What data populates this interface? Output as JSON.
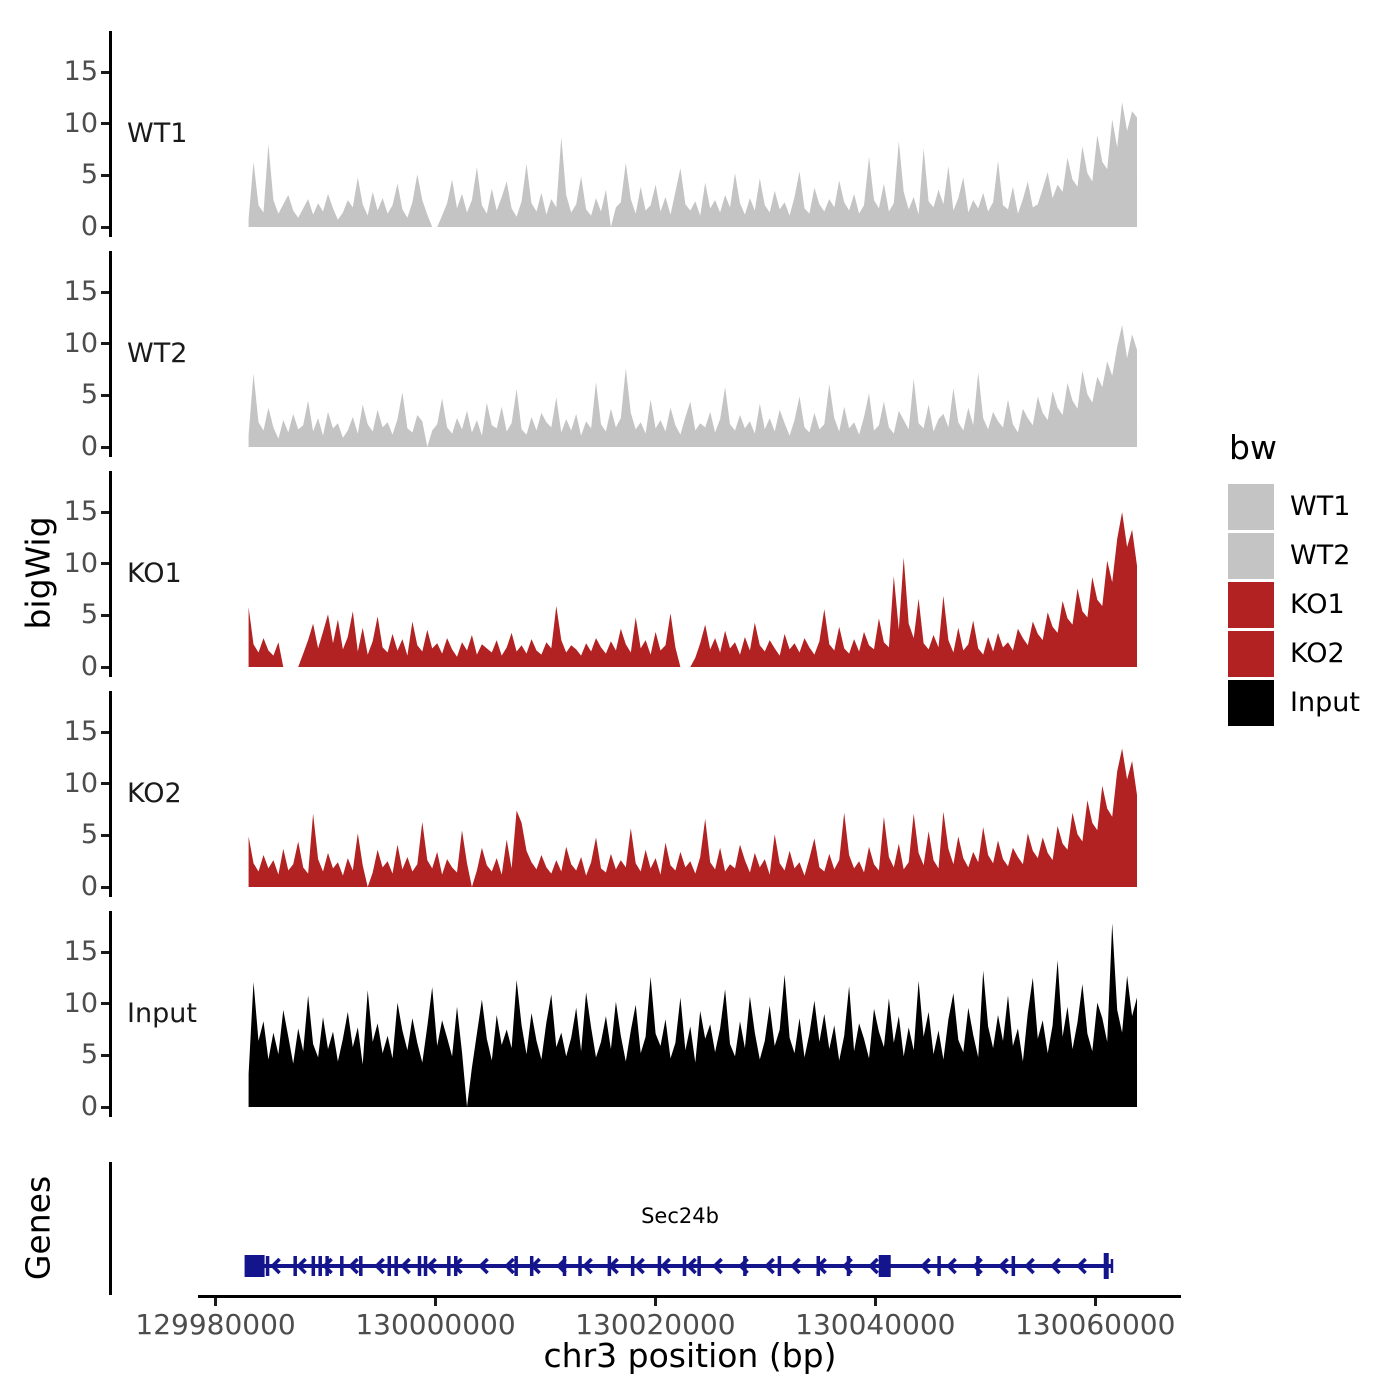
{
  "figure": {
    "y_axis_title": "bigWig",
    "genes_axis_title": "Genes",
    "x_axis_title": "chr3 position (bp)",
    "gene_label": "Sec24b"
  },
  "legend": {
    "title": "bw",
    "items": [
      {
        "label": "WT1",
        "color": "#c4c4c4"
      },
      {
        "label": "WT2",
        "color": "#c4c4c4"
      },
      {
        "label": "KO1",
        "color": "#b22222"
      },
      {
        "label": "KO2",
        "color": "#b22222"
      },
      {
        "label": "Input",
        "color": "#000000"
      }
    ]
  },
  "chart_data": {
    "type": "area",
    "title": "",
    "xlabel": "chr3 position (bp)",
    "ylabel": "bigWig",
    "grid": false,
    "legend_position": "right",
    "x_axis": {
      "axis_min_bp": 129978400,
      "axis_max_bp": 130067800,
      "tick_values": [
        129980000,
        130000000,
        130020000,
        130040000,
        130060000
      ],
      "tick_labels": [
        "129980000",
        "130000000",
        "130020000",
        "130040000",
        "130060000"
      ]
    },
    "y_axis": {
      "ticks": [
        0,
        5,
        10,
        15
      ],
      "ylim": [
        0,
        18.5
      ]
    },
    "data_start_bp": 129983000,
    "data_end_bp": 130063800,
    "tracks": [
      {
        "name": "WT1",
        "color": "#c4c4c4",
        "values": [
          0.8,
          6.3,
          2.1,
          1.4,
          8,
          2.6,
          1.3,
          2.2,
          3.1,
          1.6,
          0.9,
          1.8,
          2.7,
          1.2,
          2.3,
          1.5,
          3.2,
          1.8,
          0.7,
          1.4,
          2.6,
          1.9,
          4.8,
          2.2,
          1.1,
          3.4,
          1.6,
          2.8,
          1.3,
          2.1,
          4.2,
          1.7,
          0.9,
          2.4,
          5.1,
          2.6,
          1.2,
          0,
          0,
          1.1,
          2.3,
          4.6,
          1.8,
          3.2,
          1.4,
          2.6,
          5.8,
          2.1,
          1.3,
          3.7,
          1.6,
          2.9,
          4.4,
          1.8,
          1,
          2.5,
          6.1,
          2.3,
          1.5,
          3.3,
          1.2,
          2.7,
          1.9,
          8.7,
          3.1,
          1.4,
          2.2,
          4.9,
          1.7,
          1.1,
          2.8,
          1.5,
          3.6,
          0,
          1.9,
          2.4,
          6.2,
          2.7,
          1.3,
          3.9,
          1.6,
          2.1,
          4.1,
          1.5,
          2.9,
          1.2,
          3.4,
          5.7,
          2.2,
          1.6,
          2.5,
          1.1,
          4.3,
          1.8,
          2.6,
          1.4,
          3.1,
          1.9,
          5.2,
          2.3,
          1.2,
          2.8,
          1.6,
          4.7,
          2.1,
          1.4,
          3.5,
          1.7,
          2.4,
          1.1,
          2.9,
          5.4,
          1.8,
          1.3,
          3.8,
          2.2,
          1.5,
          2.7,
          1.9,
          4.5,
          2.4,
          1.6,
          3.2,
          1.3,
          2.1,
          6.8,
          2.6,
          1.8,
          4.2,
          1.5,
          2.3,
          8.3,
          3.4,
          1.7,
          2.9,
          1.2,
          7.6,
          2.5,
          1.9,
          3.6,
          2.2,
          5.9,
          1.6,
          2.8,
          4.8,
          1.4,
          2.6,
          1.8,
          3.3,
          1.5,
          2.4,
          6.4,
          2.1,
          1.7,
          3.9,
          1.3,
          2.7,
          4.4,
          1.9,
          2.2,
          3.7,
          5.3,
          2.8,
          4.1,
          3.4,
          6.7,
          4.6,
          3.9,
          7.8,
          5.2,
          4.4,
          8.9,
          6.3,
          5.6,
          10.4,
          7.7,
          12.1,
          9.3,
          11.2,
          10.6
        ]
      },
      {
        "name": "WT2",
        "color": "#c4c4c4",
        "values": [
          1.2,
          7.1,
          2.4,
          1.6,
          3.8,
          1.9,
          0.8,
          2.6,
          1.4,
          3.2,
          1.7,
          2.1,
          4.5,
          1.5,
          2.8,
          1.1,
          3.4,
          1.8,
          2.3,
          0.9,
          1.6,
          2.9,
          1.3,
          4.1,
          2.2,
          1.5,
          3.6,
          1.9,
          2.4,
          1.2,
          2.7,
          5.3,
          1.8,
          1.4,
          3.1,
          2.5,
          0,
          1.6,
          2.2,
          4.7,
          1.9,
          1.3,
          2.8,
          1.7,
          3.5,
          1.4,
          2.6,
          1.1,
          4.3,
          2.1,
          1.8,
          3.9,
          1.5,
          2.3,
          5.6,
          1.7,
          1.2,
          2.9,
          1.6,
          3.3,
          2.4,
          1.9,
          4.8,
          1.4,
          2.7,
          1.6,
          3.2,
          1.1,
          2.5,
          1.8,
          6.3,
          2.2,
          1.5,
          3.7,
          1.9,
          2.8,
          7.6,
          3.3,
          1.7,
          2.4,
          1.3,
          4.6,
          1.8,
          2.6,
          1.5,
          3.8,
          2.1,
          1.2,
          2.9,
          4.4,
          1.6,
          2.3,
          1.9,
          3.4,
          1.4,
          2.7,
          5.8,
          2.2,
          1.6,
          3.1,
          1.8,
          2.5,
          1.3,
          4.2,
          1.7,
          2.8,
          1.5,
          3.6,
          2.3,
          1.1,
          2.6,
          4.9,
          1.9,
          1.4,
          3.3,
          1.7,
          2.2,
          6.1,
          2.8,
          1.5,
          3.9,
          1.8,
          2.4,
          1.2,
          2.9,
          5.2,
          1.6,
          2.1,
          4.4,
          1.9,
          1.3,
          3.5,
          2.6,
          1.7,
          6.6,
          2.3,
          1.8,
          4.1,
          1.5,
          2.7,
          3.2,
          1.9,
          5.7,
          2.4,
          1.6,
          3.8,
          2.1,
          7.2,
          2.8,
          1.7,
          3.4,
          2.5,
          1.9,
          4.6,
          2.2,
          1.4,
          3.7,
          2.8,
          2.1,
          4.9,
          3.3,
          2.6,
          5.4,
          3.8,
          3.1,
          6.2,
          4.5,
          3.7,
          7.4,
          5.1,
          4.3,
          6.8,
          5.8,
          8.3,
          6.9,
          9.7,
          11.8,
          8.6,
          10.9,
          9.4
        ]
      },
      {
        "name": "KO1",
        "color": "#b22222",
        "values": [
          5.8,
          2.2,
          1.4,
          2.8,
          1.6,
          1.1,
          2.4,
          0,
          0,
          0,
          0,
          1.3,
          2.6,
          4.2,
          1.8,
          3.4,
          5.1,
          2.3,
          4.6,
          1.7,
          2.9,
          5.4,
          1.5,
          3.8,
          1.2,
          2.5,
          4.9,
          1.9,
          1.4,
          3.2,
          1.6,
          2.7,
          1.1,
          4.4,
          2.1,
          1.5,
          3.6,
          1.8,
          2.3,
          1.3,
          2.8,
          1.7,
          1,
          2.4,
          1.6,
          3.1,
          1.2,
          2.2,
          1.8,
          1.4,
          2.6,
          1.1,
          1.9,
          3.3,
          1.5,
          2.1,
          1.3,
          2.7,
          1.6,
          1.2,
          2.4,
          1.8,
          5.9,
          2.6,
          1.4,
          2.1,
          1.7,
          1.1,
          2.3,
          1.5,
          2.8,
          1.9,
          1.3,
          2.5,
          1.6,
          3.7,
          2.2,
          1.4,
          4.8,
          1.8,
          2.6,
          1.2,
          3.4,
          1.6,
          2.1,
          5.2,
          1.9,
          0,
          0,
          0,
          0.9,
          2.3,
          4.1,
          1.7,
          2.8,
          1.4,
          3.5,
          1.8,
          2.4,
          1.2,
          2.9,
          1.6,
          4.3,
          2.1,
          1.5,
          2.6,
          1.8,
          1.1,
          3.2,
          1.7,
          2.3,
          1.4,
          2.8,
          1.9,
          1.2,
          2.5,
          5.6,
          2.2,
          1.6,
          3.9,
          1.8,
          1.3,
          2.7,
          1.5,
          3.4,
          2.1,
          1.7,
          4.7,
          2.4,
          1.9,
          8.8,
          3.6,
          10.6,
          4.2,
          2.8,
          6.6,
          2.3,
          1.7,
          3.1,
          1.9,
          6.9,
          2.6,
          1.4,
          3.8,
          1.6,
          2.2,
          4.5,
          1.8,
          1.2,
          2.9,
          1.5,
          3.3,
          1.9,
          2.4,
          1.6,
          3.7,
          2.8,
          2.1,
          4.4,
          3.2,
          2.6,
          5.3,
          3.9,
          3.3,
          6.4,
          4.7,
          4.1,
          7.6,
          5.4,
          4.8,
          8.7,
          6.5,
          5.9,
          10.3,
          8.2,
          12.4,
          15,
          11.6,
          13.3,
          9.8
        ]
      },
      {
        "name": "KO2",
        "color": "#b22222",
        "values": [
          4.9,
          2.3,
          1.5,
          3.1,
          1.8,
          2.6,
          1.2,
          3.7,
          1.6,
          2.2,
          4.4,
          1.9,
          1.3,
          7.1,
          2.7,
          1.5,
          3.3,
          1.8,
          2.4,
          1.1,
          2.8,
          1.6,
          5.2,
          2.1,
          0,
          1.4,
          3.6,
          1.9,
          2.5,
          1.3,
          4.1,
          1.7,
          2.9,
          1.5,
          2.2,
          6.3,
          2.6,
          1.8,
          3.4,
          1.2,
          2.7,
          1.9,
          1.4,
          5.5,
          2.3,
          0,
          1.6,
          3.8,
          2.1,
          1.5,
          2.8,
          1.2,
          4.6,
          1.8,
          7.4,
          6.2,
          3.5,
          2.4,
          1.7,
          3.1,
          1.9,
          1.3,
          2.6,
          1.5,
          3.9,
          2.2,
          1.6,
          2.9,
          1.1,
          2.4,
          4.8,
          1.8,
          1.4,
          3.2,
          1.7,
          2.6,
          1.9,
          5.7,
          2.3,
          1.5,
          3.6,
          1.8,
          2.8,
          1.2,
          4.3,
          2.1,
          1.6,
          3.4,
          1.9,
          2.5,
          1.3,
          2.9,
          6.6,
          2.4,
          1.7,
          3.8,
          1.5,
          2.2,
          1.8,
          4.1,
          2.6,
          1.4,
          3.3,
          1.9,
          2.7,
          1.2,
          5.1,
          2.3,
          1.6,
          3.5,
          1.8,
          2.4,
          1.1,
          2.8,
          4.7,
          1.9,
          1.5,
          3.2,
          1.7,
          2.6,
          7.2,
          3.1,
          1.8,
          2.5,
          1.4,
          3.9,
          2.2,
          1.6,
          6.8,
          2.9,
          1.9,
          4.2,
          1.7,
          2.4,
          7.1,
          3.3,
          2.1,
          5.4,
          2.6,
          1.8,
          7.3,
          3.7,
          2.2,
          4.9,
          2.8,
          1.9,
          3.4,
          2.4,
          5.8,
          3.1,
          2.3,
          4.5,
          2.7,
          2,
          3.8,
          2.9,
          2.2,
          5.2,
          3.5,
          2.8,
          4.8,
          3.3,
          2.6,
          5.9,
          4.2,
          3.6,
          7.2,
          5.1,
          4.4,
          8.4,
          6.2,
          5.5,
          9.8,
          7.6,
          6.8,
          11.2,
          13.4,
          10.4,
          12.2,
          8.9
        ]
      },
      {
        "name": "Input",
        "color": "#000000",
        "values": [
          3.2,
          12.1,
          6.4,
          8.3,
          4.6,
          7.2,
          5.1,
          9.4,
          6.8,
          4.2,
          7.6,
          5.4,
          10.8,
          6.1,
          4.8,
          8.7,
          5.6,
          7.3,
          4.4,
          6.6,
          9.2,
          5.8,
          7.7,
          4.1,
          11.3,
          6.3,
          8.1,
          5.2,
          6.9,
          4.7,
          10.1,
          7.4,
          5.5,
          8.6,
          6.2,
          4.3,
          7.8,
          11.6,
          5.9,
          8.4,
          6.7,
          4.9,
          9.7,
          5.3,
          0,
          3.8,
          7.1,
          10.4,
          6.6,
          4.5,
          8.9,
          6,
          7.5,
          5.7,
          12.3,
          7.9,
          5.1,
          9.1,
          6.4,
          4.6,
          8.2,
          10.9,
          5.8,
          7.2,
          4.9,
          6.7,
          9.6,
          5.4,
          11.1,
          7.7,
          4.8,
          6.3,
          8.8,
          5.6,
          10.2,
          6.9,
          4.4,
          7.4,
          9.9,
          5.2,
          6.8,
          12.6,
          7.1,
          5.9,
          8.5,
          4.7,
          6.2,
          10.6,
          5.5,
          7.8,
          4.3,
          9.3,
          6.6,
          8,
          5.3,
          7.6,
          11.4,
          6.1,
          4.9,
          8.3,
          5.7,
          10.7,
          7.2,
          4.6,
          6.4,
          9.8,
          5.9,
          7.5,
          12.8,
          6.7,
          5.2,
          8.6,
          4.8,
          7.1,
          10.3,
          6.3,
          9,
          5.6,
          7.9,
          4.5,
          6.9,
          11.7,
          5.4,
          8.1,
          6.6,
          4.7,
          9.5,
          7.3,
          5.8,
          10.5,
          6.2,
          8.8,
          4.9,
          7.7,
          5.5,
          12.2,
          6.8,
          9.2,
          5.1,
          7.4,
          4.6,
          8.5,
          11,
          6.5,
          5.3,
          9.6,
          7,
          4.8,
          13.2,
          7.8,
          5.7,
          8.9,
          6.4,
          10.8,
          5.9,
          7.6,
          4.4,
          9.1,
          12.5,
          6.6,
          8.4,
          5.2,
          7.9,
          14.2,
          6.8,
          9.7,
          5.6,
          8.2,
          11.9,
          7.1,
          5.4,
          10.1,
          8.6,
          6.3,
          17.8,
          9.4,
          7.2,
          12.7,
          8.8,
          10.6
        ]
      }
    ],
    "gene_track": {
      "axis_label": "Genes",
      "gene": {
        "name": "Sec24b",
        "strand": "-",
        "color": "#14148c",
        "start_bp": 129983000,
        "end_bp": 130061500,
        "exon_fractions": [
          0.022,
          0.054,
          0.075,
          0.083,
          0.091,
          0.108,
          0.13,
          0.163,
          0.171,
          0.198,
          0.205,
          0.232,
          0.24,
          0.31,
          0.328,
          0.366,
          0.384,
          0.418,
          0.445,
          0.476,
          0.505,
          0.522,
          0.575,
          0.615,
          0.66,
          0.695,
          0.8,
          0.845,
          0.886
        ],
        "large_exon_fractions": [
          0,
          0.737
        ],
        "end_bar_fraction": 1
      }
    }
  }
}
